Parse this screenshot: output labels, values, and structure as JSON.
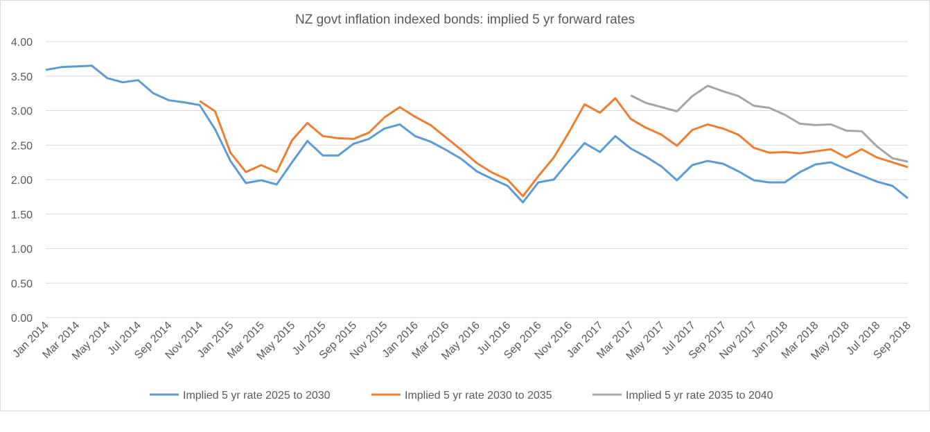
{
  "chart_data": {
    "type": "line",
    "title": "NZ govt inflation indexed bonds: implied 5 yr forward rates",
    "xlabel": "",
    "ylabel": "",
    "ylim": [
      0,
      4
    ],
    "yticks": [
      "0.00",
      "0.50",
      "1.00",
      "1.50",
      "2.00",
      "2.50",
      "3.00",
      "3.50",
      "4.00"
    ],
    "grid": true,
    "legend_position": "bottom",
    "categories": [
      "Jan 2014",
      "Feb 2014",
      "Mar 2014",
      "Apr 2014",
      "May 2014",
      "Jun 2014",
      "Jul 2014",
      "Aug 2014",
      "Sep 2014",
      "Oct 2014",
      "Nov 2014",
      "Dec 2014",
      "Jan 2015",
      "Feb 2015",
      "Mar 2015",
      "Apr 2015",
      "May 2015",
      "Jun 2015",
      "Jul 2015",
      "Aug 2015",
      "Sep 2015",
      "Oct 2015",
      "Nov 2015",
      "Dec 2015",
      "Jan 2016",
      "Feb 2016",
      "Mar 2016",
      "Apr 2016",
      "May 2016",
      "Jun 2016",
      "Jul 2016",
      "Aug 2016",
      "Sep 2016",
      "Oct 2016",
      "Nov 2016",
      "Dec 2016",
      "Jan 2017",
      "Feb 2017",
      "Mar 2017",
      "Apr 2017",
      "May 2017",
      "Jun 2017",
      "Jul 2017",
      "Aug 2017",
      "Sep 2017",
      "Oct 2017",
      "Nov 2017",
      "Dec 2017",
      "Jan 2018",
      "Feb 2018",
      "Mar 2018",
      "Apr 2018",
      "May 2018",
      "Jun 2018",
      "Jul 2018",
      "Aug 2018",
      "Sep 2018"
    ],
    "series": [
      {
        "name": "Implied 5 yr rate 2025 to 2030",
        "color": "#5b9bd5",
        "values": [
          3.59,
          3.63,
          3.64,
          3.65,
          3.47,
          3.41,
          3.44,
          3.25,
          3.15,
          3.12,
          3.08,
          2.73,
          2.27,
          1.95,
          1.99,
          1.93,
          2.25,
          2.56,
          2.35,
          2.35,
          2.52,
          2.59,
          2.74,
          2.8,
          2.63,
          2.55,
          2.43,
          2.3,
          2.12,
          2.01,
          1.91,
          1.67,
          1.96,
          2.0,
          2.27,
          2.53,
          2.4,
          2.63,
          2.45,
          2.33,
          2.19,
          1.99,
          2.21,
          2.27,
          2.23,
          2.12,
          1.99,
          1.96,
          1.96,
          2.11,
          2.22,
          2.25,
          2.15,
          2.06,
          1.97,
          1.91,
          1.73
        ]
      },
      {
        "name": "Implied 5 yr rate 2030 to 2035",
        "color": "#ed7d31",
        "values": [
          null,
          null,
          null,
          null,
          null,
          null,
          null,
          null,
          null,
          null,
          3.14,
          2.99,
          2.39,
          2.11,
          2.21,
          2.11,
          2.57,
          2.82,
          2.63,
          2.6,
          2.59,
          2.68,
          2.9,
          3.05,
          2.91,
          2.79,
          2.61,
          2.43,
          2.24,
          2.1,
          2.0,
          1.76,
          2.05,
          2.32,
          2.69,
          3.09,
          2.97,
          3.18,
          2.88,
          2.75,
          2.65,
          2.49,
          2.72,
          2.8,
          2.74,
          2.65,
          2.46,
          2.39,
          2.4,
          2.38,
          2.41,
          2.44,
          2.32,
          2.44,
          2.32,
          2.25,
          2.18
        ]
      },
      {
        "name": "Implied 5 yr rate 2035 to 2040",
        "color": "#a5a5a5",
        "values": [
          null,
          null,
          null,
          null,
          null,
          null,
          null,
          null,
          null,
          null,
          null,
          null,
          null,
          null,
          null,
          null,
          null,
          null,
          null,
          null,
          null,
          null,
          null,
          null,
          null,
          null,
          null,
          null,
          null,
          null,
          null,
          null,
          null,
          null,
          null,
          null,
          null,
          null,
          3.22,
          3.11,
          3.05,
          2.99,
          3.21,
          3.36,
          3.28,
          3.21,
          3.07,
          3.04,
          2.94,
          2.81,
          2.79,
          2.8,
          2.71,
          2.7,
          2.48,
          2.31,
          2.26
        ]
      }
    ]
  }
}
